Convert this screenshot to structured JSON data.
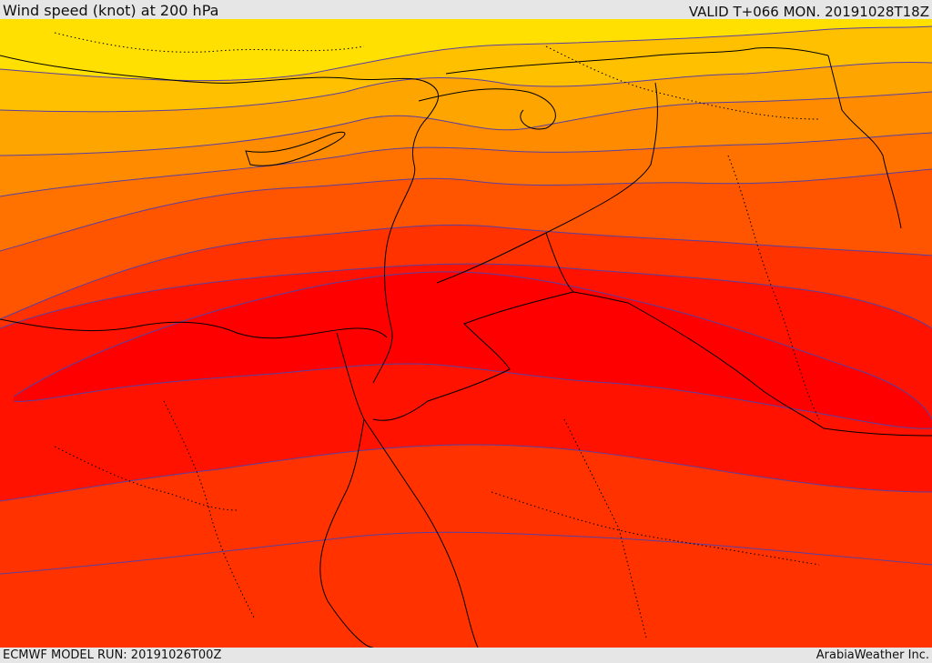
{
  "header": {
    "title": "Wind speed (knot) at 200 hPa",
    "valid": "VALID T+066 MON. 20191028T18Z"
  },
  "footer": {
    "model_run": "ECMWF MODEL RUN: 20191026T00Z",
    "credit": "ArabiaWeather Inc."
  },
  "map": {
    "variable": "wind speed",
    "level": "200 hPa",
    "palette": [
      "#ffe000",
      "#ffc000",
      "#ffa500",
      "#ff8c00",
      "#ff7200",
      "#ff5400",
      "#ff3200",
      "#ff1200",
      "#ff0000"
    ],
    "contour_color": "#5a3fa0",
    "coastline_color": "#000000",
    "border_style": "dotted"
  }
}
